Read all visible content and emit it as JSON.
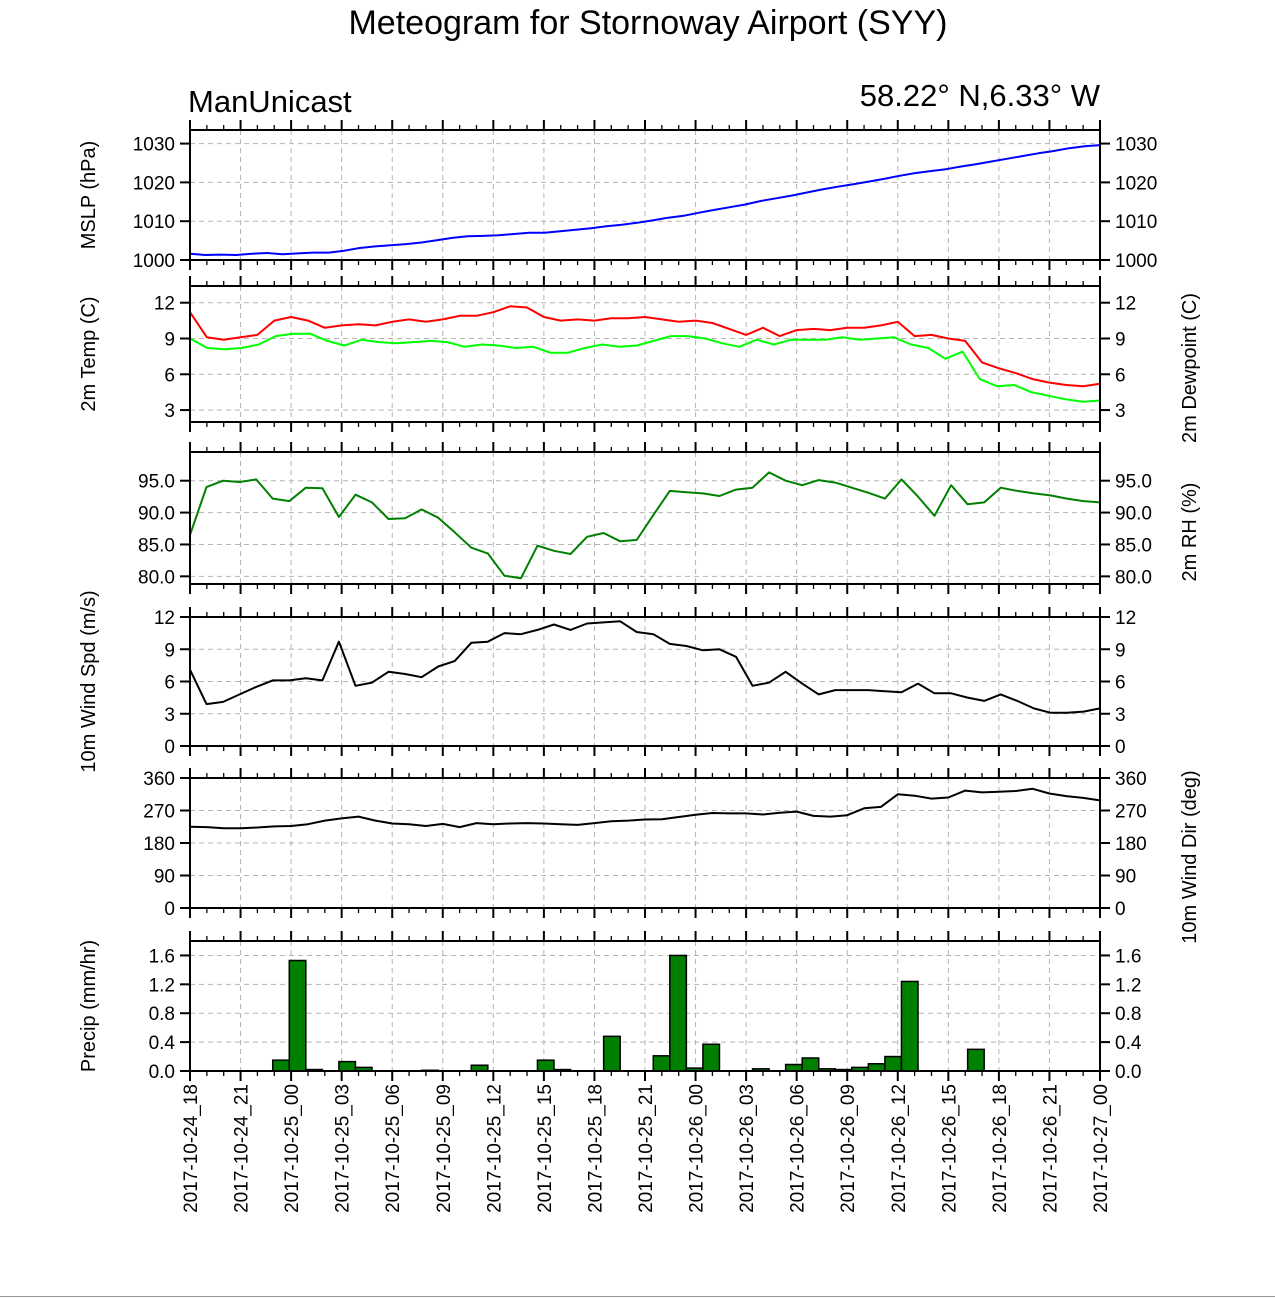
{
  "title": "Meteogram for Stornoway Airport (SYY)",
  "model": "ManUnicast",
  "location": "58.22° N,6.33° W",
  "x_tick_labels": [
    "2017-10-24_18",
    "2017-10-24_21",
    "2017-10-25_00",
    "2017-10-25_03",
    "2017-10-25_06",
    "2017-10-25_09",
    "2017-10-25_12",
    "2017-10-25_15",
    "2017-10-25_18",
    "2017-10-25_21",
    "2017-10-26_00",
    "2017-10-26_03",
    "2017-10-26_06",
    "2017-10-26_09",
    "2017-10-26_12",
    "2017-10-26_15",
    "2017-10-26_18",
    "2017-10-26_21",
    "2017-10-27_00"
  ],
  "chart_data": [
    {
      "type": "line",
      "ylabel": "MSLP (hPa)",
      "ylabel_right": "",
      "ylim": [
        1000,
        1033.5
      ],
      "yticks": [
        1000,
        1010,
        1020,
        1030
      ],
      "ytick_labels": [
        "1000",
        "1010",
        "1020",
        "1030"
      ],
      "series": [
        {
          "color": "#0000ff",
          "values": [
            1001.6,
            1001.3,
            1001.4,
            1001.3,
            1001.6,
            1001.8,
            1001.5,
            1001.7,
            1001.9,
            1001.9,
            1002.4,
            1003.1,
            1003.5,
            1003.8,
            1004.1,
            1004.5,
            1005.1,
            1005.7,
            1006.1,
            1006.2,
            1006.4,
            1006.7,
            1007.0,
            1007.0,
            1007.4,
            1007.8,
            1008.2,
            1008.7,
            1009.1,
            1009.6,
            1010.2,
            1010.9,
            1011.4,
            1012.2,
            1012.9,
            1013.6,
            1014.3,
            1015.2,
            1015.9,
            1016.6,
            1017.4,
            1018.2,
            1018.9,
            1019.5,
            1020.2,
            1020.9,
            1021.7,
            1022.4,
            1022.9,
            1023.4,
            1024.1,
            1024.7,
            1025.4,
            1026.1,
            1026.8,
            1027.5,
            1028.1,
            1028.8,
            1029.3,
            1029.6
          ]
        }
      ]
    },
    {
      "type": "line",
      "ylabel": "2m Temp (C)",
      "ylabel_right": "2m Dewpoint (C)",
      "ylim": [
        2,
        13.4
      ],
      "yticks": [
        3,
        6,
        9,
        12
      ],
      "ytick_labels": [
        "3",
        "6",
        "9",
        "12"
      ],
      "series": [
        {
          "color": "#ff0000",
          "values": [
            11.2,
            9.1,
            8.9,
            9.1,
            9.3,
            10.5,
            10.8,
            10.5,
            9.9,
            10.1,
            10.2,
            10.1,
            10.4,
            10.6,
            10.4,
            10.6,
            10.9,
            10.9,
            11.2,
            11.7,
            11.6,
            10.8,
            10.5,
            10.6,
            10.5,
            10.7,
            10.7,
            10.8,
            10.6,
            10.4,
            10.5,
            10.3,
            9.8,
            9.3,
            9.9,
            9.2,
            9.7,
            9.8,
            9.7,
            9.9,
            9.9,
            10.1,
            10.4,
            9.2,
            9.3,
            9.0,
            8.8,
            7.0,
            6.5,
            6.1,
            5.6,
            5.3,
            5.1,
            5.0,
            5.2
          ]
        },
        {
          "color": "#00ff00",
          "values": [
            9.0,
            8.2,
            8.1,
            8.2,
            8.5,
            9.2,
            9.4,
            9.4,
            8.8,
            8.4,
            8.9,
            8.7,
            8.6,
            8.7,
            8.8,
            8.7,
            8.3,
            8.5,
            8.4,
            8.2,
            8.3,
            7.8,
            7.8,
            8.2,
            8.5,
            8.3,
            8.4,
            8.8,
            9.2,
            9.2,
            9.0,
            8.6,
            8.3,
            8.9,
            8.5,
            8.9,
            8.9,
            8.9,
            9.1,
            8.9,
            9.0,
            9.1,
            8.5,
            8.2,
            7.3,
            7.9,
            5.6,
            5.0,
            5.1,
            4.5,
            4.2,
            3.9,
            3.7,
            3.8
          ]
        }
      ]
    },
    {
      "type": "line",
      "ylabel": "",
      "ylabel_right": "2m RH (%)",
      "ylim": [
        78.8,
        99.5
      ],
      "yticks": [
        80,
        85,
        90,
        95
      ],
      "ytick_labels": [
        "80.0",
        "85.0",
        "90.0",
        "95.0"
      ],
      "series": [
        {
          "color": "#008000",
          "values": [
            86.5,
            94.0,
            95.0,
            94.8,
            95.2,
            92.2,
            91.8,
            93.9,
            93.8,
            89.3,
            92.8,
            91.6,
            89.0,
            89.1,
            90.5,
            89.2,
            86.9,
            84.5,
            83.6,
            80.1,
            79.7,
            84.8,
            84.0,
            83.5,
            86.2,
            86.8,
            85.5,
            85.7,
            89.6,
            93.4,
            93.2,
            93.0,
            92.6,
            93.6,
            93.9,
            96.3,
            95.0,
            94.3,
            95.1,
            94.7,
            93.9,
            93.1,
            92.2,
            95.2,
            92.5,
            89.5,
            94.3,
            91.3,
            91.6,
            93.9,
            93.4,
            93.0,
            92.7,
            92.2,
            91.8,
            91.6
          ]
        }
      ]
    },
    {
      "type": "line",
      "ylabel": "10m Wind Spd (m/s)",
      "ylabel_right": "",
      "ylim": [
        0,
        12
      ],
      "yticks": [
        0,
        3,
        6,
        9,
        12
      ],
      "ytick_labels": [
        "0",
        "3",
        "6",
        "9",
        "12"
      ],
      "series": [
        {
          "color": "#000000",
          "values": [
            7.1,
            3.9,
            4.1,
            4.8,
            5.5,
            6.1,
            6.1,
            6.3,
            6.1,
            9.7,
            5.6,
            5.9,
            6.9,
            6.7,
            6.4,
            7.4,
            7.9,
            9.6,
            9.7,
            10.5,
            10.4,
            10.8,
            11.3,
            10.8,
            11.4,
            11.5,
            11.6,
            10.6,
            10.4,
            9.5,
            9.3,
            8.9,
            9.0,
            8.3,
            5.6,
            5.9,
            6.9,
            5.8,
            4.8,
            5.2,
            5.2,
            5.2,
            5.1,
            5.0,
            5.8,
            4.9,
            4.9,
            4.5,
            4.2,
            4.8,
            4.2,
            3.5,
            3.1,
            3.1,
            3.2,
            3.5
          ]
        }
      ]
    },
    {
      "type": "line",
      "ylabel": "",
      "ylabel_right": "10m Wind Dir (deg)",
      "ylim": [
        0,
        360
      ],
      "yticks": [
        0,
        90,
        180,
        270,
        360
      ],
      "ytick_labels": [
        "0",
        "90",
        "180",
        "270",
        "360"
      ],
      "series": [
        {
          "color": "#000000",
          "values": [
            225,
            224,
            221,
            221,
            223,
            226,
            227,
            232,
            242,
            248,
            253,
            242,
            234,
            232,
            227,
            233,
            224,
            235,
            232,
            234,
            235,
            234,
            232,
            230,
            235,
            240,
            242,
            245,
            246,
            252,
            258,
            263,
            262,
            262,
            259,
            264,
            267,
            255,
            253,
            257,
            276,
            280,
            315,
            311,
            303,
            306,
            325,
            320,
            322,
            324,
            330,
            317,
            310,
            305,
            298
          ]
        }
      ]
    },
    {
      "type": "bar",
      "ylabel": "Precip (mm/hr)",
      "ylabel_right": "",
      "ylim": [
        0,
        1.8
      ],
      "yticks": [
        0,
        0.4,
        0.8,
        1.2,
        1.6
      ],
      "ytick_labels": [
        "0.0",
        "0.4",
        "0.8",
        "1.2",
        "1.6"
      ],
      "bar_color": "#008000",
      "values": [
        0,
        0,
        0,
        0,
        0,
        0.15,
        1.53,
        0.02,
        0,
        0.13,
        0.05,
        0,
        0,
        0,
        0.01,
        0,
        0,
        0.08,
        0,
        0,
        0,
        0.15,
        0.02,
        0,
        0,
        0.48,
        0,
        0,
        0.21,
        1.6,
        0.04,
        0.37,
        0,
        0,
        0.03,
        0,
        0.09,
        0.18,
        0.03,
        0.02,
        0.05,
        0.1,
        0.2,
        1.24,
        0,
        0,
        0,
        0.3,
        0,
        0,
        0,
        0,
        0,
        0,
        0
      ]
    }
  ]
}
